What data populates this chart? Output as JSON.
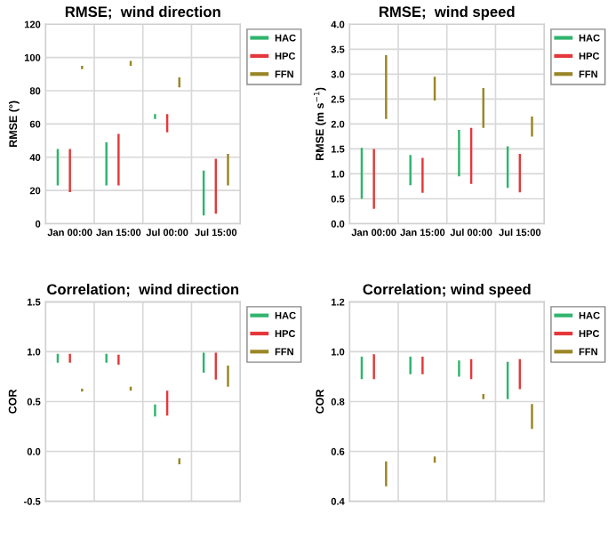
{
  "chart_data": [
    {
      "type": "bar",
      "title": "RMSE;  wind direction",
      "ylabel": "RMSE (°)",
      "categories": [
        "Jan 00:00",
        "Jan 15:00",
        "Jul 00:00",
        "Jul 15:00"
      ],
      "ylim": [
        0,
        120
      ],
      "yticks": [
        0,
        20,
        40,
        60,
        80,
        100,
        120
      ],
      "grid": true,
      "legend": "top right",
      "series": [
        {
          "name": "HAC",
          "color": "#2fb56c",
          "base": [
            23,
            23,
            63,
            5
          ],
          "values": [
            22,
            26,
            3,
            27
          ]
        },
        {
          "name": "HPC",
          "color": "#e5383b",
          "base": [
            19,
            23,
            55,
            6
          ],
          "values": [
            26,
            31,
            11,
            33
          ]
        },
        {
          "name": "FFN",
          "color": "#9a8626",
          "base": [
            93,
            95,
            82,
            23
          ],
          "values": [
            2,
            3,
            6,
            19
          ]
        }
      ]
    },
    {
      "type": "bar",
      "title": "RMSE;  wind speed",
      "ylabel": "RMSE (m s$^{−1}$)",
      "categories": [
        "Jan 00:00",
        "Jan 15:00",
        "Jul 00:00",
        "Jul 15:00"
      ],
      "ylim": [
        0,
        4
      ],
      "yticks": [
        {
          "value": 0,
          "label": "0.0"
        },
        0.5,
        {
          "value": 1,
          "label": "1.0"
        },
        1.5,
        {
          "value": 2,
          "label": "2.0"
        },
        2.5,
        {
          "value": 3,
          "label": "3.0"
        },
        3.5,
        {
          "value": 4,
          "label": "4.0"
        }
      ],
      "grid": true,
      "legend": "top right",
      "series": [
        {
          "name": "HAC",
          "color": "#2fb56c",
          "base": [
            0.5,
            0.77,
            0.95,
            0.72
          ],
          "values": [
            1.02,
            0.61,
            0.93,
            0.83
          ]
        },
        {
          "name": "HPC",
          "color": "#e5383b",
          "base": [
            0.3,
            0.62,
            0.8,
            0.63
          ],
          "values": [
            1.2,
            0.7,
            1.12,
            0.77
          ]
        },
        {
          "name": "FFN",
          "color": "#9a8626",
          "base": [
            2.1,
            2.47,
            1.92,
            1.75
          ],
          "values": [
            1.28,
            0.48,
            0.8,
            0.4
          ]
        }
      ]
    },
    {
      "type": "bar",
      "title": "Correlation;  wind direction",
      "ylabel": "COR",
      "categories": [
        null,
        null,
        null,
        null
      ],
      "ylim": [
        -0.5,
        1.5
      ],
      "yticks": [
        -0.5,
        {
          "value": 0,
          "label": "0.0"
        },
        0.5,
        {
          "value": 1,
          "label": "1.0"
        },
        1.5
      ],
      "grid": true,
      "legend": "top right",
      "series": [
        {
          "name": "HAC",
          "color": "#2fb56c",
          "base": [
            0.89,
            0.89,
            0.35,
            0.79
          ],
          "values": [
            0.09,
            0.09,
            0.12,
            0.2
          ]
        },
        {
          "name": "HPC",
          "color": "#e5383b",
          "base": [
            0.89,
            0.87,
            0.36,
            0.72
          ],
          "values": [
            0.09,
            0.1,
            0.25,
            0.27
          ]
        },
        {
          "name": "FFN",
          "color": "#9a8626",
          "base": [
            0.6,
            0.61,
            -0.13,
            0.65
          ],
          "values": [
            0.03,
            0.04,
            0.06,
            0.21
          ]
        }
      ]
    },
    {
      "type": "bar",
      "title": "Correlation; wind speed",
      "ylabel": "COR",
      "categories": [
        null,
        null,
        null,
        null
      ],
      "ylim": [
        0.4,
        1.2
      ],
      "yticks": [
        0.4,
        0.6,
        0.8,
        {
          "value": 1,
          "label": "1.0"
        },
        1.2
      ],
      "grid": true,
      "legend": "top right",
      "series": [
        {
          "name": "HAC",
          "color": "#2fb56c",
          "base": [
            0.89,
            0.91,
            0.9,
            0.81
          ],
          "values": [
            0.09,
            0.07,
            0.065,
            0.15
          ]
        },
        {
          "name": "HPC",
          "color": "#e5383b",
          "base": [
            0.89,
            0.91,
            0.89,
            0.85
          ],
          "values": [
            0.1,
            0.07,
            0.08,
            0.12
          ]
        },
        {
          "name": "FFN",
          "color": "#9a8626",
          "base": [
            0.46,
            0.555,
            0.81,
            0.69
          ],
          "values": [
            0.1,
            0.025,
            0.02,
            0.1
          ]
        }
      ]
    }
  ]
}
